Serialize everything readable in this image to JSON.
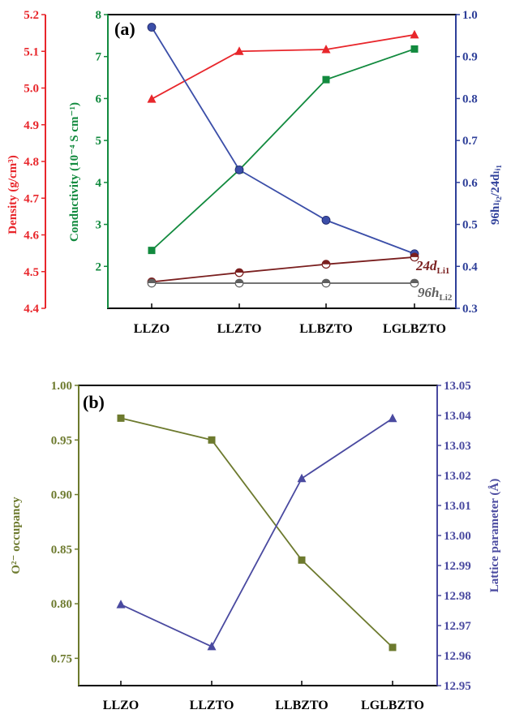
{
  "chart_data": [
    {
      "panel": "(a)",
      "type": "line",
      "categories": [
        "LLZO",
        "LLZTO",
        "LLBZTO",
        "LGLBZTO"
      ],
      "axes": {
        "density": {
          "label": "Density (g/cm³)",
          "range": [
            4.4,
            5.2
          ],
          "ticks": [
            "4.4",
            "4.5",
            "4.6",
            "4.7",
            "4.8",
            "4.9",
            "5.0",
            "5.1",
            "5.2"
          ],
          "color": "#e8262b"
        },
        "conductivity": {
          "label": "Conductivity (10⁻⁴ S cm⁻¹)",
          "range": [
            1,
            8
          ],
          "ticks": [
            "2",
            "3",
            "4",
            "5",
            "6",
            "7",
            "8"
          ],
          "color": "#128a3e"
        },
        "ratio": {
          "label": "96hₗᵢ₂/24dₗᵢ₁",
          "range": [
            0.3,
            1.0
          ],
          "ticks": [
            "0.3",
            "0.4",
            "0.5",
            "0.6",
            "0.7",
            "0.8",
            "0.9",
            "1.0"
          ],
          "color": "#2e3f99"
        }
      },
      "series": [
        {
          "axis": "density",
          "marker": "triangle",
          "color": "#e8262b",
          "values": [
            4.97,
            5.1,
            5.105,
            5.145
          ]
        },
        {
          "axis": "conductivity",
          "marker": "square",
          "color": "#128a3e",
          "values": [
            2.38,
            4.3,
            6.45,
            7.18
          ]
        },
        {
          "axis": "ratio",
          "marker": "circle",
          "color": "#3b4ea8",
          "values": [
            0.97,
            0.63,
            0.51,
            0.43
          ]
        },
        {
          "axis": "conductivity",
          "marker": "half-circle",
          "color": "#7a1f1f",
          "values": [
            1.63,
            1.85,
            2.05,
            2.22
          ]
        },
        {
          "axis": "conductivity",
          "marker": "half-circle",
          "color": "#606060",
          "values": [
            1.6,
            1.6,
            1.6,
            1.6
          ]
        }
      ],
      "series_labels": [
        {
          "main": "24d",
          "sub": "Li1",
          "color": "#7a1f1f"
        },
        {
          "main": "96h",
          "sub": "Li2",
          "color": "#606060"
        }
      ]
    },
    {
      "panel": "(b)",
      "type": "line",
      "categories": [
        "LLZO",
        "LLZTO",
        "LLBZTO",
        "LGLBZTO"
      ],
      "axes": {
        "left": {
          "label": "O²⁻ occupancy",
          "range": [
            0.725,
            1.0
          ],
          "ticks": [
            "0.75",
            "0.80",
            "0.85",
            "0.90",
            "0.95",
            "1.00"
          ],
          "color": "#6d7a2e"
        },
        "right": {
          "label": "Lattice parameter (Å)",
          "range": [
            12.95,
            13.05
          ],
          "ticks": [
            "12.95",
            "12.96",
            "12.97",
            "12.98",
            "12.99",
            "13.00",
            "13.01",
            "13.02",
            "13.03",
            "13.04",
            "13.05"
          ],
          "color": "#4a4aa0"
        }
      },
      "series": [
        {
          "axis": "left",
          "marker": "square",
          "color": "#6d7a2e",
          "values": [
            0.97,
            0.95,
            0.84,
            0.76
          ]
        },
        {
          "axis": "right",
          "marker": "triangle",
          "color": "#4a4aa0",
          "values": [
            12.977,
            12.963,
            13.019,
            13.039
          ]
        }
      ]
    }
  ]
}
